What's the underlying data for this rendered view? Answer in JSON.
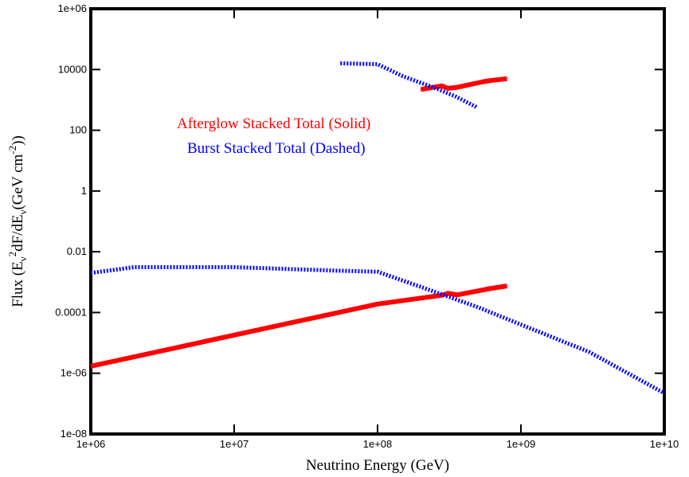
{
  "chart_data": {
    "type": "line",
    "x_scale": "log",
    "y_scale": "log",
    "xlim": [
      1000000.0,
      10000000000.0
    ],
    "ylim": [
      1e-08,
      1000000.0
    ],
    "xlabel": "Neutrino Energy (GeV)",
    "ylabel": {
      "prefix": "Flux (E",
      "sub1": "ν",
      "sup1": "2",
      "mid": "dF/dE",
      "sub2": "ν",
      "open": "(GeV cm",
      "sup2": "-2",
      "close": "))"
    },
    "x_ticks": [
      {
        "value": 1000000.0,
        "label": "1e+06"
      },
      {
        "value": 10000000.0,
        "label": "1e+07"
      },
      {
        "value": 100000000.0,
        "label": "1e+08"
      },
      {
        "value": 1000000000.0,
        "label": "1e+09"
      },
      {
        "value": 10000000000.0,
        "label": "1e+10"
      }
    ],
    "y_ticks": [
      {
        "value": 1e-08,
        "label": "1e-08"
      },
      {
        "value": 1e-06,
        "label": "1e-06"
      },
      {
        "value": 0.0001,
        "label": "0.0001"
      },
      {
        "value": 0.01,
        "label": "0.01"
      },
      {
        "value": 1,
        "label": "1"
      },
      {
        "value": 100,
        "label": "100"
      },
      {
        "value": 10000,
        "label": "10000"
      },
      {
        "value": 1000000.0,
        "label": "1e+06"
      }
    ],
    "grid": false,
    "series": [
      {
        "key": "afterglow-low",
        "style": "solid",
        "color": "#ff0000",
        "x": [
          1000000.0,
          10000000.0,
          100000000.0,
          280000000.0,
          310000000.0,
          360000000.0,
          550000000.0,
          600000000.0,
          800000000.0
        ],
        "y": [
          1.7e-06,
          1.8e-05,
          0.00019,
          0.00037,
          0.00043,
          0.00038,
          0.00056,
          0.00061,
          0.00075
        ]
      },
      {
        "key": "afterglow-high",
        "style": "solid",
        "color": "#ff0000",
        "x": [
          200000000.0,
          280000000.0,
          310000000.0,
          360000000.0,
          550000000.0,
          600000000.0,
          800000000.0
        ],
        "y": [
          2200,
          2900,
          2400,
          2600,
          4000,
          4300,
          5000
        ]
      },
      {
        "key": "burst-low",
        "style": "dashed",
        "color": "#0000ff",
        "x": [
          1000000.0,
          2000000.0,
          10000000.0,
          50000000.0,
          100000000.0,
          200000000.0,
          500000000.0,
          1000000000.0,
          3000000000.0,
          10000000000.0
        ],
        "y": [
          0.002,
          0.0031,
          0.0031,
          0.0024,
          0.0022,
          0.0007,
          0.00015,
          4e-05,
          5e-06,
          2.2e-07
        ]
      },
      {
        "key": "burst-high",
        "style": "dashed",
        "color": "#0000ff",
        "x": [
          55000000.0,
          100000000.0,
          150000000.0,
          250000000.0,
          350000000.0,
          500000000.0
        ],
        "y": [
          16000,
          15000,
          6000,
          2500,
          1300,
          550
        ]
      }
    ],
    "annotations": [
      {
        "text": "Afterglow Stacked Total (Solid)",
        "color": "#ff0000"
      },
      {
        "text": "Burst Stacked Total (Dashed)",
        "color": "#0000ff"
      }
    ]
  }
}
